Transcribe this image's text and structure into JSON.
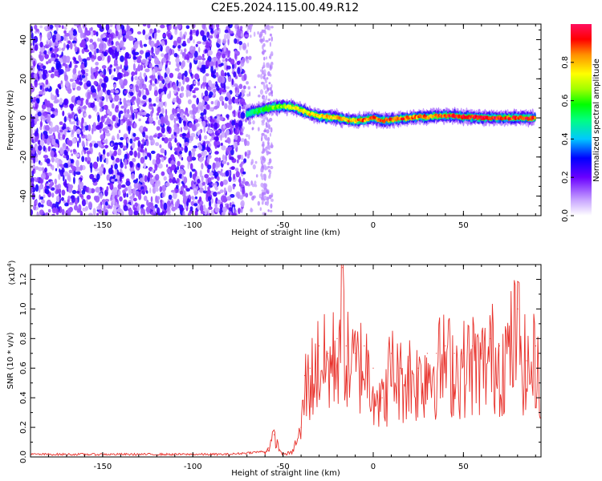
{
  "title": "C2E5.2024.115.00.49.R12",
  "colors": {
    "trace": "#e8302a",
    "scatter_low": "#7a00ff",
    "scatter_faint": "#d6b8ff"
  },
  "chart_data": [
    {
      "type": "heatmap",
      "xlabel": "Height of straight line (km)",
      "ylabel": "Frequency (Hz)",
      "xlim": [
        -190,
        93
      ],
      "ylim": [
        -50,
        48
      ],
      "x_ticks": [
        -150,
        -100,
        -50,
        0,
        50
      ],
      "y_ticks": [
        -40,
        -20,
        0,
        20,
        40
      ],
      "colorbar": {
        "label": "Normalized spectral amplitude",
        "range": [
          0.0,
          1.0
        ],
        "ticks": [
          0.0,
          0.2,
          0.4,
          0.6,
          0.8
        ]
      },
      "noise_region_x": [
        -190,
        -70
      ],
      "noise_amplitude_range": [
        0.05,
        0.3
      ],
      "signal_ridge": {
        "x": [
          -70,
          -65,
          -60,
          -55,
          -50,
          -45,
          -40,
          -35,
          -30,
          -25,
          -20,
          -15,
          -10,
          -5,
          0,
          5,
          10,
          15,
          20,
          25,
          30,
          35,
          40,
          45,
          50,
          55,
          60,
          65,
          70,
          75,
          80,
          85,
          90
        ],
        "freq": [
          2,
          3.5,
          4.5,
          5.5,
          6,
          5.5,
          4,
          2,
          1,
          0.5,
          0,
          -1,
          -1.5,
          -1,
          0,
          -1.5,
          -1,
          -0.5,
          0,
          0.5,
          0.5,
          1,
          1,
          1,
          0.5,
          0.5,
          0,
          0,
          0,
          0,
          0,
          0,
          0
        ],
        "amplitude": [
          0.5,
          0.55,
          0.6,
          0.65,
          0.7,
          0.75,
          0.8,
          0.82,
          0.85,
          0.85,
          0.88,
          0.85,
          0.88,
          0.9,
          0.92,
          0.9,
          0.92,
          0.92,
          0.9,
          0.88,
          0.9,
          0.92,
          0.95,
          0.95,
          0.97,
          0.97,
          0.98,
          0.98,
          0.98,
          0.98,
          0.98,
          0.98,
          0.98
        ]
      }
    },
    {
      "type": "line",
      "xlabel": "Height of straight line (km)",
      "ylabel": "SNR (10 * v/v)",
      "scale_label": "(x10",
      "scale_exponent": "4",
      "scale_close": ")",
      "xlim": [
        -190,
        93
      ],
      "ylim": [
        0,
        1.3
      ],
      "x_ticks": [
        -150,
        -100,
        -50,
        0,
        50
      ],
      "y_ticks": [
        0.0,
        0.2,
        0.4,
        0.6,
        0.8,
        1.0,
        1.2
      ],
      "series": [
        {
          "x": [
            -190,
            -80,
            -60,
            -58,
            -55,
            -52,
            -50,
            -45,
            -40,
            -38,
            -35,
            -30,
            -25,
            -20,
            -17,
            -15,
            -10,
            -5,
            0,
            5,
            10,
            15,
            20,
            25,
            30,
            35,
            40,
            45,
            50,
            55,
            60,
            65,
            70,
            75,
            80,
            85,
            90,
            93
          ],
          "values": [
            0.01,
            0.01,
            0.03,
            0.06,
            0.15,
            0.05,
            0.02,
            0.03,
            0.2,
            0.55,
            0.6,
            0.75,
            0.7,
            0.8,
            1.28,
            0.75,
            0.7,
            0.75,
            0.6,
            0.4,
            0.7,
            0.6,
            0.65,
            0.6,
            0.7,
            0.7,
            0.75,
            0.7,
            0.7,
            0.75,
            0.7,
            0.8,
            0.75,
            0.8,
            1.0,
            0.65,
            0.75,
            0.7
          ]
        }
      ]
    }
  ]
}
